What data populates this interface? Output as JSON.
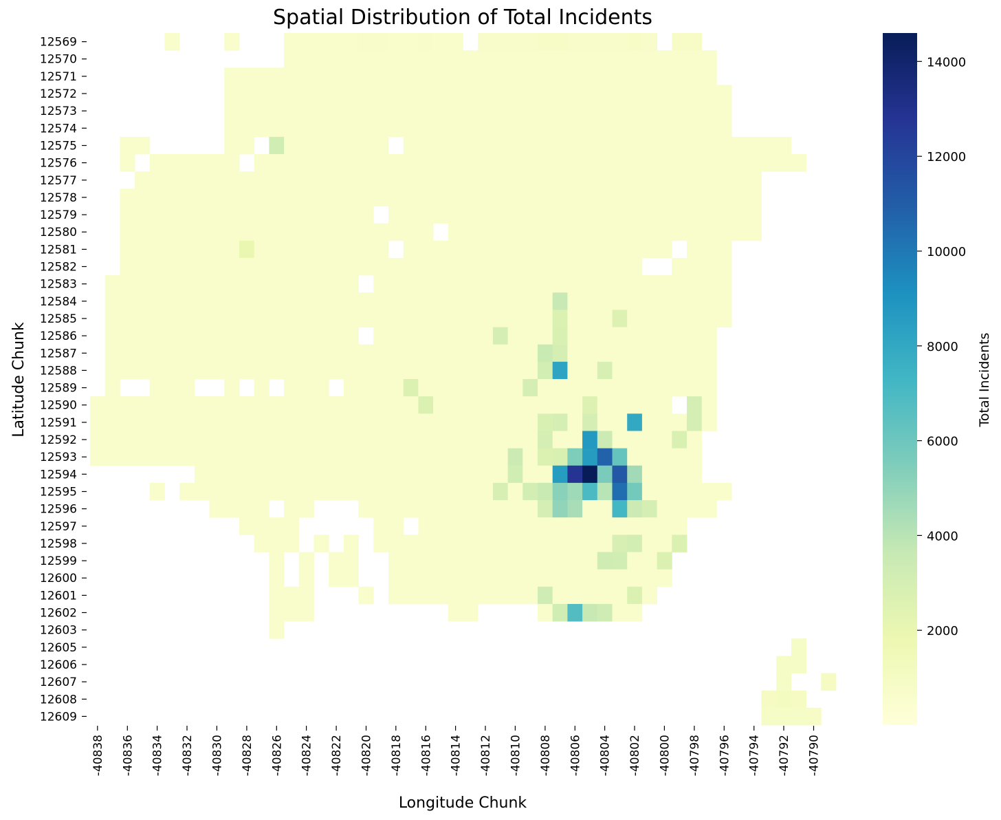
{
  "chart_data": {
    "type": "heatmap",
    "title": "Spatial Distribution of Total Incidents",
    "xlabel": "Longitude Chunk",
    "ylabel": "Latitude Chunk",
    "x_start": -40838,
    "x_count": 25,
    "x_ticks": [
      "-40838",
      "-40836",
      "-40834",
      "-40832",
      "-40830",
      "-40828",
      "-40826",
      "-40824",
      "-40822",
      "-40820",
      "-40818",
      "-40816",
      "-40814",
      "-40812",
      "-40810",
      "-40808",
      "-40806",
      "-40804",
      "-40802",
      "-40800",
      "-40798",
      "-40796",
      "-40794",
      "-40792",
      "-40790"
    ],
    "rows": [
      "12569",
      "12570",
      "12571",
      "12572",
      "12573",
      "12574",
      "12575",
      "12576",
      "12577",
      "12578",
      "12579",
      "12580",
      "12581",
      "12582",
      "12583",
      "12584",
      "12585",
      "12586",
      "12587",
      "12588",
      "12589",
      "12590",
      "12591",
      "12592",
      "12593",
      "12594",
      "12595",
      "12596",
      "12597",
      "12598",
      "12599",
      "12600",
      "12601",
      "12602",
      "12603",
      "12605",
      "12606",
      "12607",
      "12608",
      "12609"
    ],
    "cmap": "YlGnBu",
    "vmin": 0,
    "vmax": 14600,
    "colorbar": {
      "label": "Total Incidents",
      "ticks": [
        "2000",
        "4000",
        "6000",
        "8000",
        "10000",
        "12000",
        "14000"
      ]
    },
    "row_ranges": [
      [
        [
          10,
          12
        ],
        [
          27,
          50
        ],
        [
          55,
          50
        ],
        [
          60,
          50
        ]
      ],
      [
        [
          10,
          50
        ],
        [
          41,
          20
        ],
        [
          42,
          70
        ]
      ],
      [
        [
          10,
          50
        ],
        [
          41,
          20
        ],
        [
          42,
          70
        ]
      ],
      [
        [
          10,
          50
        ],
        [
          32,
          20
        ],
        [
          33,
          70
        ]
      ],
      [
        [
          10,
          50
        ],
        [
          37,
          20
        ],
        [
          38,
          70
        ]
      ],
      [
        [
          10,
          50
        ],
        [
          33,
          20
        ],
        [
          34,
          70
        ]
      ],
      [
        [
          10,
          50
        ],
        [
          37,
          20
        ],
        [
          38,
          70
        ]
      ],
      [
        [
          10,
          50
        ],
        [
          37,
          20
        ],
        [
          38,
          70
        ]
      ],
      [
        [
          10,
          50
        ],
        [
          39,
          20
        ],
        [
          40,
          70
        ]
      ],
      [
        [
          10,
          50
        ],
        [
          40,
          20
        ],
        [
          41,
          70
        ]
      ],
      [
        [
          10,
          50
        ],
        [
          40,
          20
        ],
        [
          41,
          70
        ]
      ],
      [
        [
          10,
          50
        ],
        [
          40,
          20
        ],
        [
          41,
          70
        ]
      ],
      [
        [
          10,
          50
        ],
        [
          43,
          20
        ],
        [
          44,
          70
        ]
      ],
      [
        [
          10,
          50
        ],
        [
          43,
          20
        ],
        [
          44,
          70
        ]
      ],
      [
        [
          10,
          50
        ],
        [
          43,
          20
        ],
        [
          44,
          70
        ]
      ],
      [
        [
          10,
          50
        ],
        [
          44,
          20
        ],
        [
          45,
          70
        ]
      ],
      [
        [
          10,
          50
        ],
        [
          46,
          20
        ],
        [
          47,
          70
        ]
      ],
      [
        [
          10,
          50
        ],
        [
          46,
          20
        ],
        [
          47,
          70
        ]
      ],
      [
        [
          10,
          50
        ],
        [
          46,
          20
        ],
        [
          47,
          70
        ]
      ],
      [
        [
          10,
          50
        ],
        [
          47,
          20
        ],
        [
          48,
          70
        ]
      ],
      [
        [
          10,
          50
        ],
        [
          47,
          20
        ],
        [
          48,
          70
        ]
      ],
      [
        [
          10,
          50
        ],
        [
          47,
          20
        ],
        [
          48,
          70
        ]
      ],
      [
        [
          10,
          50
        ],
        [
          47,
          20
        ],
        [
          48,
          70
        ]
      ],
      [
        [
          10,
          50
        ],
        [
          47,
          20
        ],
        [
          48,
          70
        ]
      ],
      [
        [
          10,
          50
        ],
        [
          47,
          20
        ],
        [
          48,
          70
        ]
      ],
      [
        [
          10,
          50
        ],
        [
          47,
          20
        ],
        [
          48,
          70
        ]
      ],
      [
        [
          10,
          50
        ],
        [
          48,
          20
        ],
        [
          49,
          70
        ]
      ],
      [
        [
          10,
          50
        ],
        [
          49,
          20
        ],
        [
          50,
          70
        ]
      ],
      [
        [
          10,
          50
        ],
        [
          49,
          20
        ],
        [
          50,
          70
        ]
      ],
      [
        [
          10,
          50
        ],
        [
          48,
          20
        ],
        [
          49,
          70
        ]
      ],
      [
        [
          10,
          50
        ],
        [
          47,
          20
        ],
        [
          48,
          70
        ]
      ],
      [
        [
          10,
          50
        ],
        [
          46,
          20
        ],
        [
          47,
          70
        ]
      ],
      [
        [
          10,
          50
        ],
        [
          47,
          20
        ],
        [
          48,
          70
        ]
      ],
      [
        [
          10,
          50
        ],
        [
          46,
          20
        ],
        [
          47,
          70
        ]
      ],
      [
        [
          10,
          50
        ],
        [
          46,
          20
        ],
        [
          47,
          70
        ]
      ],
      [
        [
          10,
          50
        ],
        [
          47,
          20
        ],
        [
          48,
          70
        ]
      ],
      [
        [
          10,
          50
        ],
        [
          46,
          20
        ],
        [
          47,
          70
        ]
      ],
      [
        [
          10,
          50
        ],
        [
          47,
          20
        ],
        [
          48,
          70
        ]
      ],
      [
        [
          10,
          50
        ],
        [
          46,
          20
        ],
        [
          47,
          70
        ]
      ],
      [
        [
          10,
          50
        ],
        [
          46,
          20
        ],
        [
          47,
          70
        ]
      ]
    ],
    "base_level": 600,
    "cells": [
      {
        "row": "12569",
        "col": -40833,
        "value": 600
      },
      {
        "row": "12569",
        "col": -40829,
        "value": 600
      },
      {
        "row": "12569",
        "col": -40825,
        "value": 600
      },
      {
        "row": "12569",
        "col": -40824,
        "value": 600
      },
      {
        "row": "12569",
        "col": -40823,
        "value": 600
      },
      {
        "row": "12569",
        "col": -40822,
        "value": 600
      },
      {
        "row": "12569",
        "col": -40821,
        "value": 600
      },
      {
        "row": "12569",
        "col": -40820,
        "value": 700
      },
      {
        "row": "12569",
        "col": -40819,
        "value": 700
      },
      {
        "row": "12569",
        "col": -40818,
        "value": 600
      },
      {
        "row": "12569",
        "col": -40817,
        "value": 600
      },
      {
        "row": "12569",
        "col": -40816,
        "value": 700
      },
      {
        "row": "12569",
        "col": -40815,
        "value": 600
      },
      {
        "row": "12569",
        "col": -40814,
        "value": 600
      },
      {
        "row": "12569",
        "col": -40812,
        "value": 700
      },
      {
        "row": "12569",
        "col": -40811,
        "value": 700
      },
      {
        "row": "12569",
        "col": -40810,
        "value": 700
      },
      {
        "row": "12569",
        "col": -40809,
        "value": 700
      },
      {
        "row": "12569",
        "col": -40808,
        "value": 800
      },
      {
        "row": "12569",
        "col": -40807,
        "value": 800
      },
      {
        "row": "12569",
        "col": -40806,
        "value": 700
      },
      {
        "row": "12569",
        "col": -40805,
        "value": 700
      },
      {
        "row": "12569",
        "col": -40804,
        "value": 700
      },
      {
        "row": "12569",
        "col": -40803,
        "value": 700
      },
      {
        "row": "12569",
        "col": -40802,
        "value": 800
      },
      {
        "row": "12569",
        "col": -40801,
        "value": 700
      },
      {
        "row": "12569",
        "col": -40799,
        "value": 800
      },
      {
        "row": "12569",
        "col": -40798,
        "value": 800
      },
      {
        "row": "12575",
        "col": -40826,
        "value": 3200
      },
      {
        "row": "12581",
        "col": -40828,
        "value": 2000
      },
      {
        "row": "12584",
        "col": -40807,
        "value": 3600
      },
      {
        "row": "12585",
        "col": -40807,
        "value": 2700
      },
      {
        "row": "12585",
        "col": -40803,
        "value": 2600
      },
      {
        "row": "12586",
        "col": -40811,
        "value": 3000
      },
      {
        "row": "12586",
        "col": -40807,
        "value": 2800
      },
      {
        "row": "12587",
        "col": -40808,
        "value": 3500
      },
      {
        "row": "12587",
        "col": -40807,
        "value": 3000
      },
      {
        "row": "12588",
        "col": -40808,
        "value": 3100
      },
      {
        "row": "12588",
        "col": -40807,
        "value": 8200
      },
      {
        "row": "12588",
        "col": -40804,
        "value": 2900
      },
      {
        "row": "12589",
        "col": -40817,
        "value": 2700
      },
      {
        "row": "12589",
        "col": -40809,
        "value": 3000
      },
      {
        "row": "12590",
        "col": -40816,
        "value": 2700
      },
      {
        "row": "12590",
        "col": -40805,
        "value": 2600
      },
      {
        "row": "12590",
        "col": -40798,
        "value": 3000
      },
      {
        "row": "12591",
        "col": -40808,
        "value": 2800
      },
      {
        "row": "12591",
        "col": -40807,
        "value": 3000
      },
      {
        "row": "12591",
        "col": -40805,
        "value": 3000
      },
      {
        "row": "12591",
        "col": -40802,
        "value": 8000
      },
      {
        "row": "12591",
        "col": -40798,
        "value": 3000
      },
      {
        "row": "12592",
        "col": -40808,
        "value": 3000
      },
      {
        "row": "12592",
        "col": -40805,
        "value": 8800
      },
      {
        "row": "12592",
        "col": -40804,
        "value": 3400
      },
      {
        "row": "12592",
        "col": -40799,
        "value": 2800
      },
      {
        "row": "12593",
        "col": -40810,
        "value": 3400
      },
      {
        "row": "12593",
        "col": -40808,
        "value": 2700
      },
      {
        "row": "12593",
        "col": -40807,
        "value": 2800
      },
      {
        "row": "12593",
        "col": -40806,
        "value": 5500
      },
      {
        "row": "12593",
        "col": -40805,
        "value": 8600
      },
      {
        "row": "12593",
        "col": -40804,
        "value": 10800
      },
      {
        "row": "12593",
        "col": -40803,
        "value": 6200
      },
      {
        "row": "12594",
        "col": -40810,
        "value": 3200
      },
      {
        "row": "12594",
        "col": -40807,
        "value": 8600
      },
      {
        "row": "12594",
        "col": -40806,
        "value": 12800
      },
      {
        "row": "12594",
        "col": -40805,
        "value": 14600
      },
      {
        "row": "12594",
        "col": -40804,
        "value": 5600
      },
      {
        "row": "12594",
        "col": -40803,
        "value": 11200
      },
      {
        "row": "12594",
        "col": -40802,
        "value": 4600
      },
      {
        "row": "12595",
        "col": -40811,
        "value": 2900
      },
      {
        "row": "12595",
        "col": -40809,
        "value": 3100
      },
      {
        "row": "12595",
        "col": -40808,
        "value": 3500
      },
      {
        "row": "12595",
        "col": -40807,
        "value": 5200
      },
      {
        "row": "12595",
        "col": -40806,
        "value": 4700
      },
      {
        "row": "12595",
        "col": -40805,
        "value": 7000
      },
      {
        "row": "12595",
        "col": -40804,
        "value": 4000
      },
      {
        "row": "12595",
        "col": -40803,
        "value": 10400
      },
      {
        "row": "12595",
        "col": -40802,
        "value": 5800
      },
      {
        "row": "12596",
        "col": -40808,
        "value": 3000
      },
      {
        "row": "12596",
        "col": -40807,
        "value": 5000
      },
      {
        "row": "12596",
        "col": -40806,
        "value": 4400
      },
      {
        "row": "12596",
        "col": -40803,
        "value": 7200
      },
      {
        "row": "12596",
        "col": -40802,
        "value": 3400
      },
      {
        "row": "12596",
        "col": -40801,
        "value": 3000
      },
      {
        "row": "12598",
        "col": -40803,
        "value": 2900
      },
      {
        "row": "12598",
        "col": -40802,
        "value": 3100
      },
      {
        "row": "12598",
        "col": -40799,
        "value": 2700
      },
      {
        "row": "12599",
        "col": -40804,
        "value": 3300
      },
      {
        "row": "12599",
        "col": -40803,
        "value": 3200
      },
      {
        "row": "12599",
        "col": -40800,
        "value": 2700
      },
      {
        "row": "12601",
        "col": -40808,
        "value": 3300
      },
      {
        "row": "12601",
        "col": -40802,
        "value": 2700
      },
      {
        "row": "12602",
        "col": -40807,
        "value": 3200
      },
      {
        "row": "12602",
        "col": -40806,
        "value": 6800
      },
      {
        "row": "12602",
        "col": -40805,
        "value": 3600
      },
      {
        "row": "12602",
        "col": -40804,
        "value": 3300
      },
      {
        "row": "12603",
        "col": -40826,
        "value": 600
      },
      {
        "row": "12605",
        "col": -40791,
        "value": 900
      },
      {
        "row": "12606",
        "col": -40792,
        "value": 900
      },
      {
        "row": "12606",
        "col": -40791,
        "value": 900
      },
      {
        "row": "12607",
        "col": -40792,
        "value": 900
      },
      {
        "row": "12607",
        "col": -40789,
        "value": 1000
      },
      {
        "row": "12608",
        "col": -40793,
        "value": 1000
      },
      {
        "row": "12608",
        "col": -40792,
        "value": 1100
      },
      {
        "row": "12608",
        "col": -40791,
        "value": 1000
      },
      {
        "row": "12609",
        "col": -40793,
        "value": 900
      },
      {
        "row": "12609",
        "col": -40792,
        "value": 900
      },
      {
        "row": "12609",
        "col": -40791,
        "value": 900
      },
      {
        "row": "12609",
        "col": -40790,
        "value": 800
      }
    ]
  }
}
